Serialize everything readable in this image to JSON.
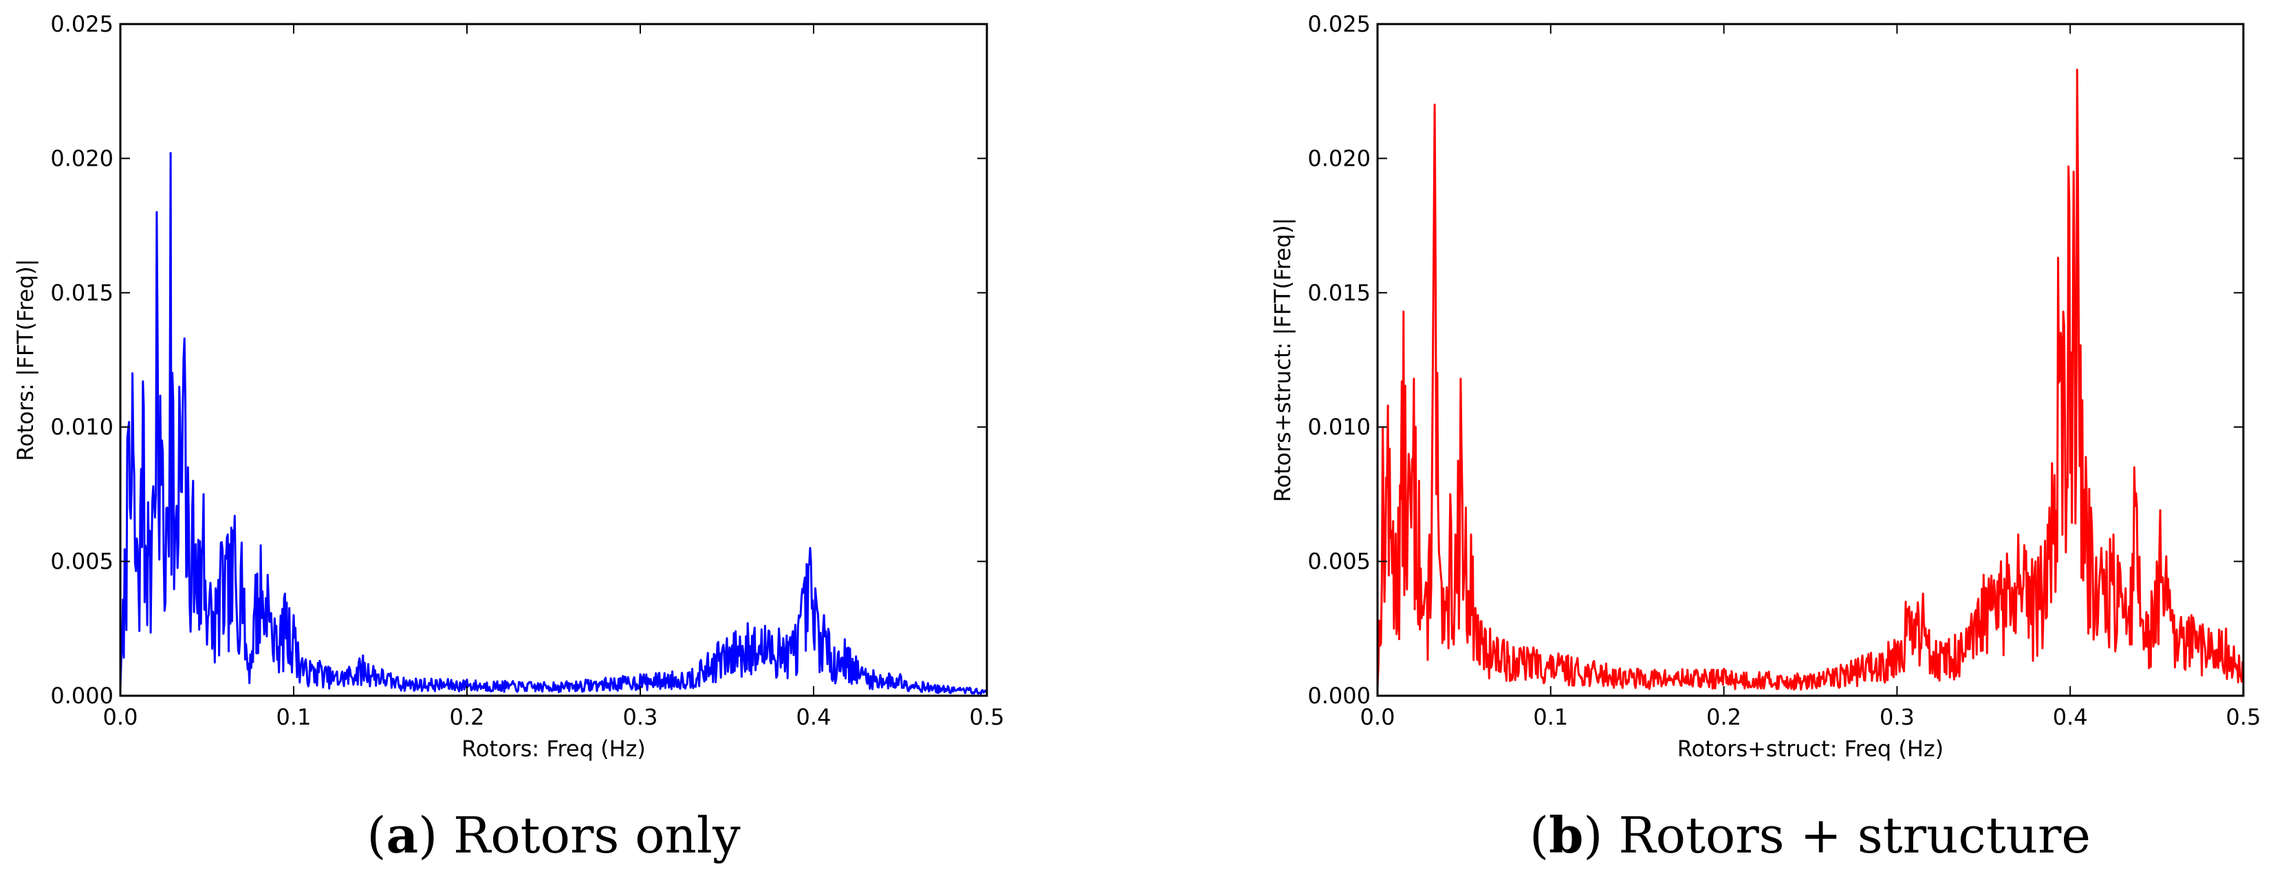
{
  "chart_data": [
    {
      "type": "line",
      "panel": "a",
      "caption_letter": "a",
      "caption_text": "Rotors only",
      "color": "#0000ff",
      "xlabel": "Rotors: Freq (Hz)",
      "ylabel": "Rotors: |FFT(Freq)|",
      "xlim": [
        0.0,
        0.5
      ],
      "ylim": [
        0.0,
        0.025
      ],
      "xticks": [
        "0.0",
        "0.1",
        "0.2",
        "0.3",
        "0.4",
        "0.5"
      ],
      "yticks": [
        "0.000",
        "0.005",
        "0.010",
        "0.015",
        "0.020",
        "0.025"
      ],
      "seed": 7,
      "peaks": [
        [
          0.0,
          0.0003
        ],
        [
          0.004,
          0.0096
        ],
        [
          0.007,
          0.012
        ],
        [
          0.01,
          0.0055
        ],
        [
          0.013,
          0.0117
        ],
        [
          0.016,
          0.0072
        ],
        [
          0.019,
          0.0078
        ],
        [
          0.021,
          0.018
        ],
        [
          0.024,
          0.0095
        ],
        [
          0.027,
          0.007
        ],
        [
          0.029,
          0.0202
        ],
        [
          0.032,
          0.0065
        ],
        [
          0.034,
          0.0115
        ],
        [
          0.037,
          0.0133
        ],
        [
          0.039,
          0.0085
        ],
        [
          0.042,
          0.008
        ],
        [
          0.045,
          0.0058
        ],
        [
          0.048,
          0.0075
        ],
        [
          0.052,
          0.0042
        ],
        [
          0.055,
          0.004
        ],
        [
          0.058,
          0.0057
        ],
        [
          0.062,
          0.006
        ],
        [
          0.066,
          0.0067
        ],
        [
          0.07,
          0.0057
        ],
        [
          0.074,
          0.0012
        ],
        [
          0.078,
          0.0045
        ],
        [
          0.081,
          0.0056
        ],
        [
          0.085,
          0.0045
        ],
        [
          0.09,
          0.0026
        ],
        [
          0.095,
          0.0038
        ],
        [
          0.1,
          0.003
        ],
        [
          0.105,
          0.0014
        ],
        [
          0.115,
          0.0013
        ],
        [
          0.125,
          0.0009
        ],
        [
          0.14,
          0.0015
        ],
        [
          0.16,
          0.0007
        ],
        [
          0.2,
          0.0006
        ],
        [
          0.25,
          0.0005
        ],
        [
          0.3,
          0.0008
        ],
        [
          0.33,
          0.001
        ],
        [
          0.345,
          0.002
        ],
        [
          0.355,
          0.0024
        ],
        [
          0.362,
          0.0027
        ],
        [
          0.372,
          0.0026
        ],
        [
          0.38,
          0.0025
        ],
        [
          0.388,
          0.0024
        ],
        [
          0.396,
          0.0049
        ],
        [
          0.398,
          0.0055
        ],
        [
          0.401,
          0.004
        ],
        [
          0.406,
          0.003
        ],
        [
          0.412,
          0.0018
        ],
        [
          0.418,
          0.0021
        ],
        [
          0.43,
          0.001
        ],
        [
          0.45,
          0.0008
        ],
        [
          0.47,
          0.0004
        ],
        [
          0.49,
          0.0003
        ],
        [
          0.5,
          0.0002
        ]
      ]
    },
    {
      "type": "line",
      "panel": "b",
      "caption_letter": "b",
      "caption_text": "Rotors + structure",
      "color": "#ff0000",
      "xlabel": "Rotors+struct: Freq (Hz)",
      "ylabel": "Rotors+struct: |FFT(Freq)|",
      "xlim": [
        0.0,
        0.5
      ],
      "ylim": [
        0.0,
        0.025
      ],
      "xticks": [
        "0.0",
        "0.1",
        "0.2",
        "0.3",
        "0.4",
        "0.5"
      ],
      "yticks": [
        "0.000",
        "0.005",
        "0.010",
        "0.015",
        "0.020",
        "0.025"
      ],
      "seed": 13,
      "peaks": [
        [
          0.0,
          0.0003
        ],
        [
          0.003,
          0.01
        ],
        [
          0.006,
          0.0108
        ],
        [
          0.009,
          0.0065
        ],
        [
          0.012,
          0.007
        ],
        [
          0.015,
          0.0143
        ],
        [
          0.018,
          0.009
        ],
        [
          0.021,
          0.0118
        ],
        [
          0.024,
          0.008
        ],
        [
          0.027,
          0.0035
        ],
        [
          0.03,
          0.006
        ],
        [
          0.033,
          0.022
        ],
        [
          0.036,
          0.005
        ],
        [
          0.039,
          0.0035
        ],
        [
          0.042,
          0.0075
        ],
        [
          0.045,
          0.006
        ],
        [
          0.048,
          0.0118
        ],
        [
          0.051,
          0.007
        ],
        [
          0.054,
          0.006
        ],
        [
          0.058,
          0.003
        ],
        [
          0.065,
          0.0025
        ],
        [
          0.075,
          0.002
        ],
        [
          0.09,
          0.0018
        ],
        [
          0.11,
          0.0015
        ],
        [
          0.15,
          0.001
        ],
        [
          0.2,
          0.001
        ],
        [
          0.25,
          0.0008
        ],
        [
          0.28,
          0.0015
        ],
        [
          0.295,
          0.002
        ],
        [
          0.305,
          0.0035
        ],
        [
          0.315,
          0.0038
        ],
        [
          0.325,
          0.002
        ],
        [
          0.34,
          0.0025
        ],
        [
          0.35,
          0.0045
        ],
        [
          0.36,
          0.005
        ],
        [
          0.37,
          0.006
        ],
        [
          0.38,
          0.005
        ],
        [
          0.388,
          0.007
        ],
        [
          0.393,
          0.0163
        ],
        [
          0.396,
          0.0143
        ],
        [
          0.399,
          0.0197
        ],
        [
          0.402,
          0.0195
        ],
        [
          0.404,
          0.0233
        ],
        [
          0.407,
          0.011
        ],
        [
          0.412,
          0.007
        ],
        [
          0.418,
          0.0055
        ],
        [
          0.425,
          0.006
        ],
        [
          0.432,
          0.004
        ],
        [
          0.437,
          0.0085
        ],
        [
          0.445,
          0.003
        ],
        [
          0.452,
          0.0069
        ],
        [
          0.46,
          0.003
        ],
        [
          0.47,
          0.003
        ],
        [
          0.48,
          0.0025
        ],
        [
          0.49,
          0.0025
        ],
        [
          0.5,
          0.0012
        ]
      ]
    }
  ]
}
